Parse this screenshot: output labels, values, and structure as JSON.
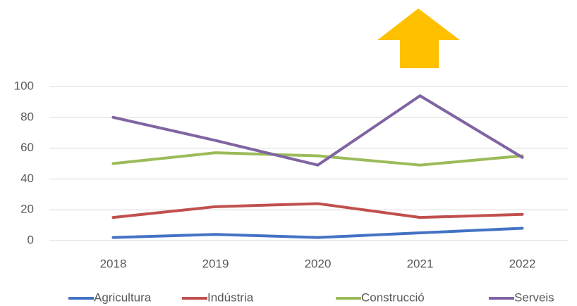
{
  "chart_data": {
    "type": "line",
    "categories": [
      "2018",
      "2019",
      "2020",
      "2021",
      "2022"
    ],
    "series": [
      {
        "name": "Agricultura",
        "color": "#4472c4",
        "values": [
          2,
          4,
          2,
          5,
          8
        ]
      },
      {
        "name": "Indústria",
        "color": "#c0504d",
        "values": [
          15,
          22,
          24,
          15,
          17
        ]
      },
      {
        "name": "Construcció",
        "color": "#9bbb59",
        "values": [
          50,
          57,
          55,
          49,
          55
        ]
      },
      {
        "name": "Serveis",
        "color": "#8064a2",
        "values": [
          80,
          65,
          49,
          94,
          54
        ]
      }
    ],
    "ylim": [
      0,
      100
    ],
    "yticks": [
      0,
      20,
      40,
      60,
      80,
      100
    ],
    "grid": true,
    "legend": "bottom"
  }
}
